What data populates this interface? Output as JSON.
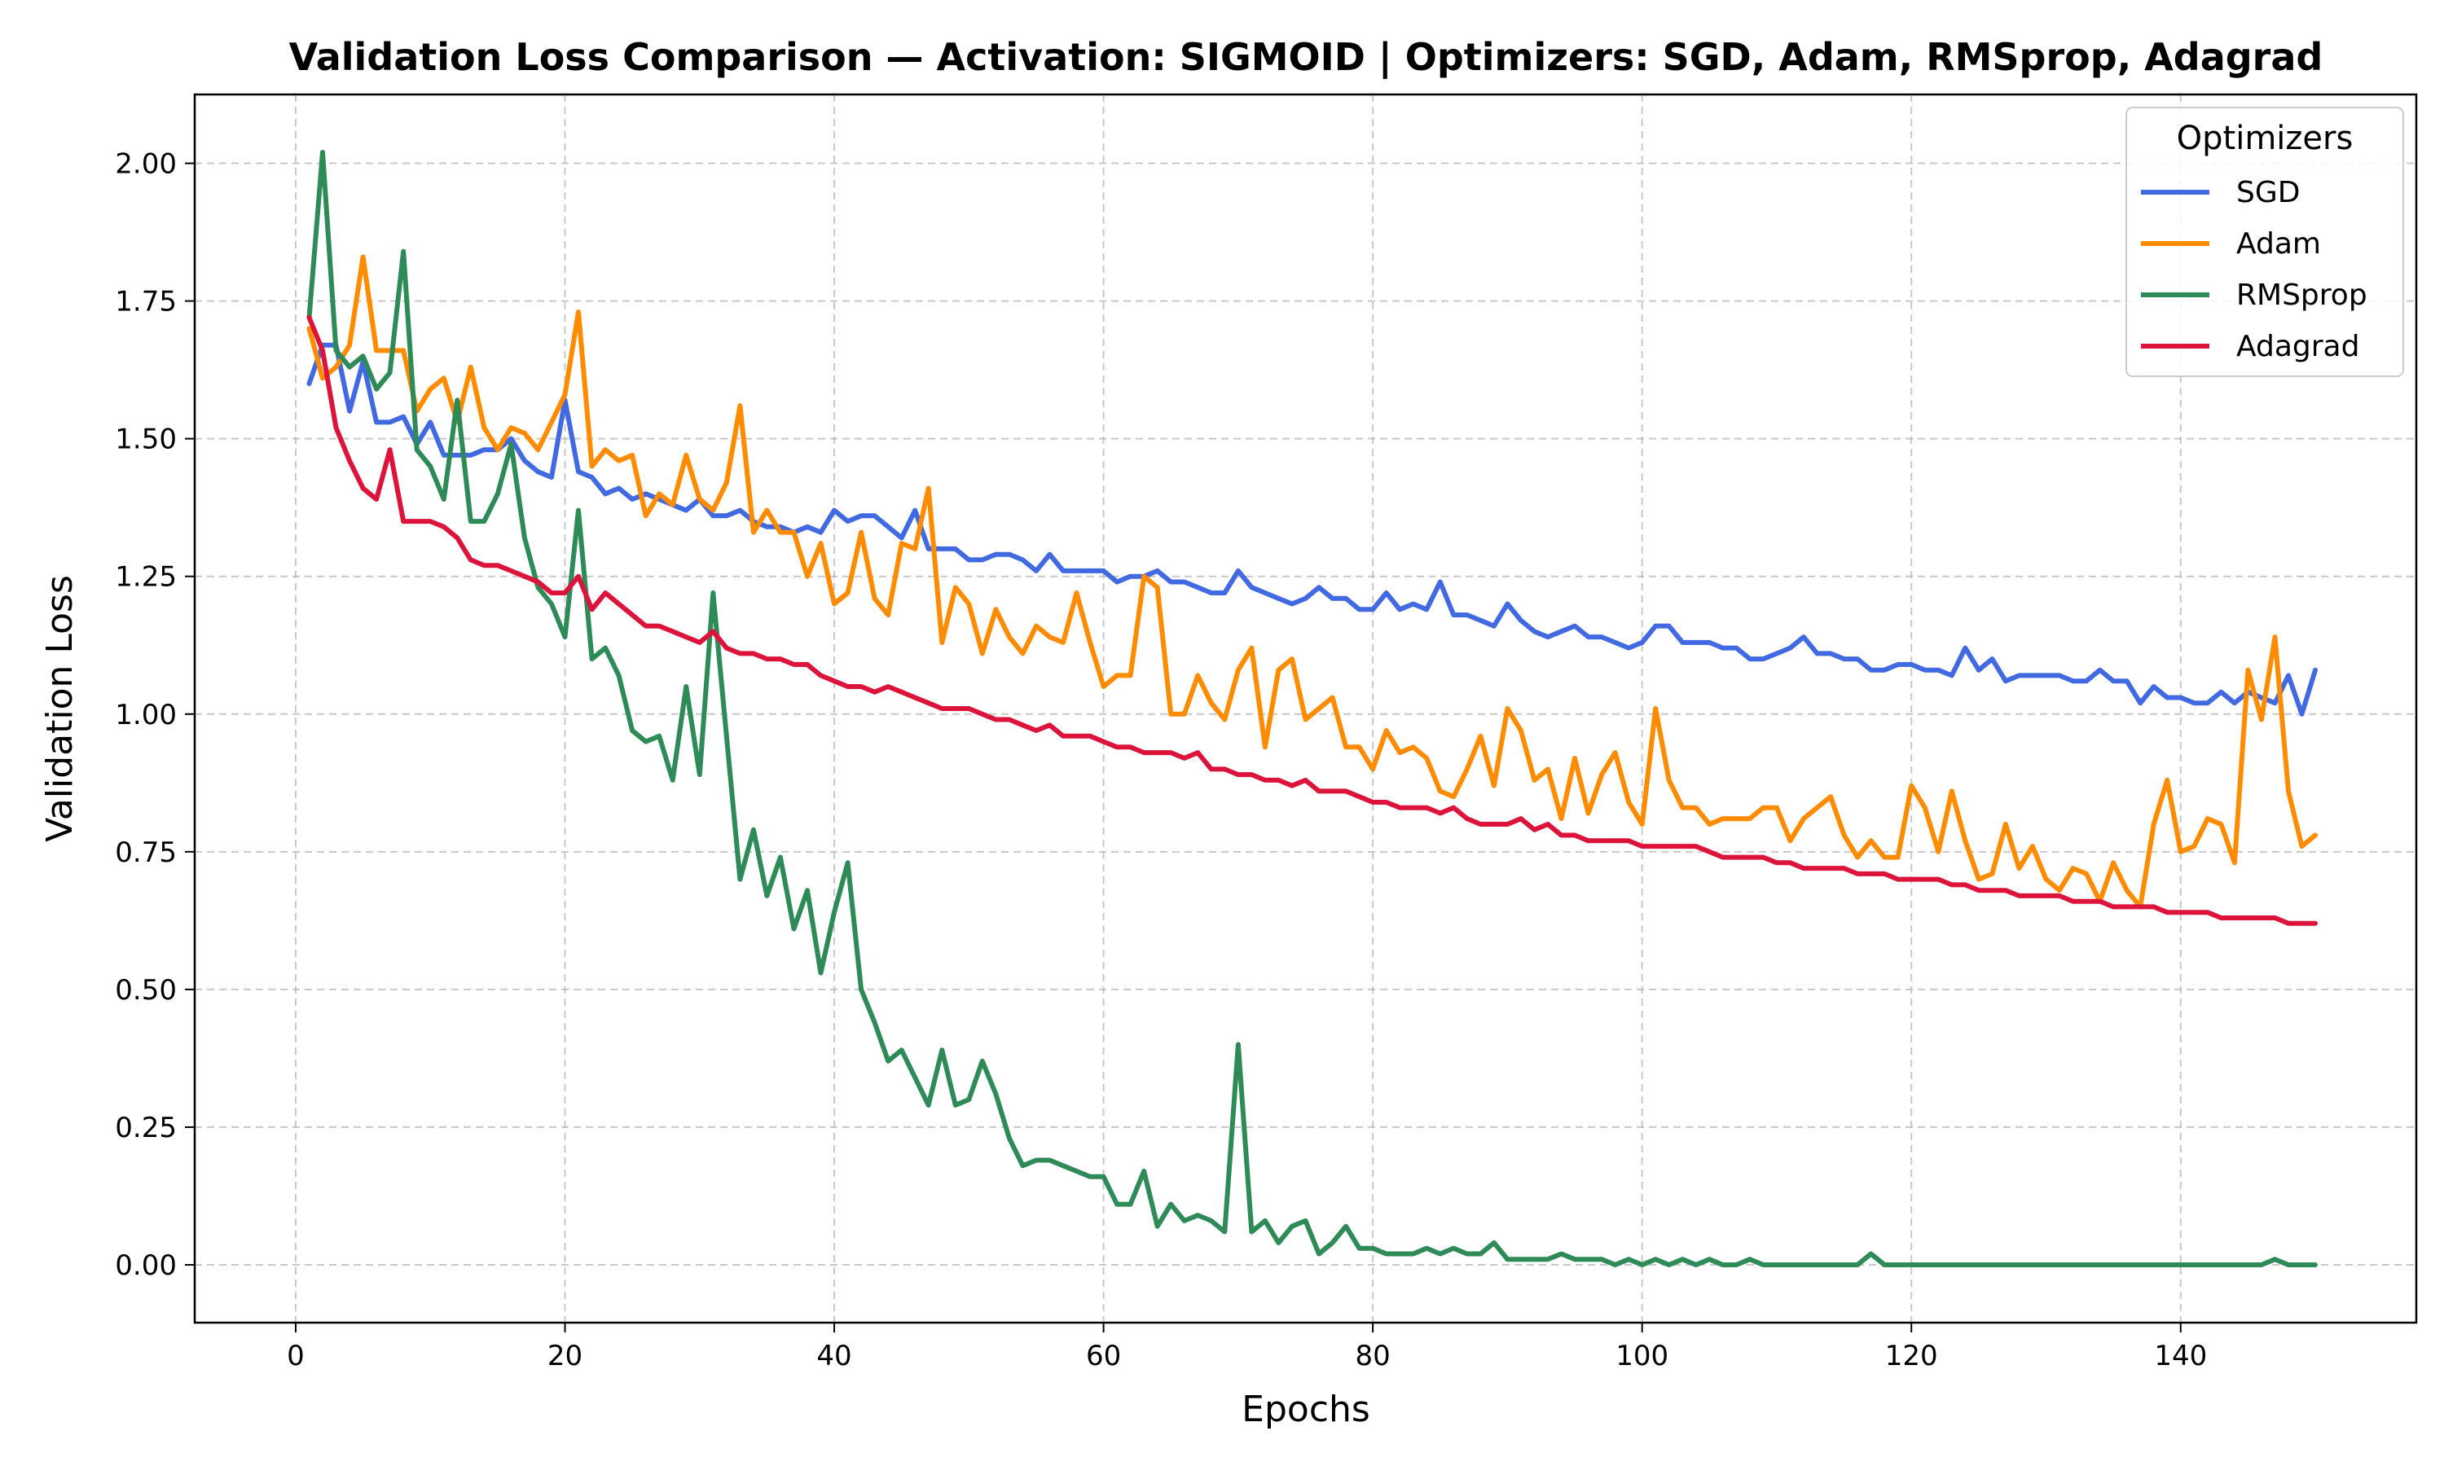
{
  "chart_data": {
    "type": "line",
    "title": "Validation Loss Comparison — Activation: SIGMOID | Optimizers: SGD, Adam, RMSprop, Adagrad",
    "xlabel": "Epochs",
    "ylabel": "Validation Loss",
    "xlim": [
      -7.5,
      157.5
    ],
    "ylim": [
      -0.105,
      2.125
    ],
    "xticks": [
      0,
      20,
      40,
      60,
      80,
      100,
      120,
      140
    ],
    "xtick_labels": [
      "0",
      "20",
      "40",
      "60",
      "80",
      "100",
      "120",
      "140"
    ],
    "yticks": [
      0.0,
      0.25,
      0.5,
      0.75,
      1.0,
      1.25,
      1.5,
      1.75,
      2.0
    ],
    "ytick_labels": [
      "0.00",
      "0.25",
      "0.50",
      "0.75",
      "1.00",
      "1.25",
      "1.50",
      "1.75",
      "2.00"
    ],
    "grid": true,
    "legend": {
      "title": "Optimizers",
      "position": "top-right"
    },
    "x_start": 1,
    "x_end": 150,
    "series": [
      {
        "name": "SGD",
        "color": "#4169e1",
        "values": [
          1.6,
          1.67,
          1.67,
          1.55,
          1.64,
          1.53,
          1.53,
          1.54,
          1.49,
          1.53,
          1.47,
          1.47,
          1.47,
          1.48,
          1.48,
          1.5,
          1.46,
          1.44,
          1.43,
          1.57,
          1.44,
          1.43,
          1.4,
          1.41,
          1.39,
          1.4,
          1.39,
          1.38,
          1.37,
          1.39,
          1.36,
          1.36,
          1.37,
          1.35,
          1.34,
          1.34,
          1.33,
          1.34,
          1.33,
          1.37,
          1.35,
          1.36,
          1.36,
          1.34,
          1.32,
          1.37,
          1.3,
          1.3,
          1.3,
          1.28,
          1.28,
          1.29,
          1.29,
          1.28,
          1.26,
          1.29,
          1.26,
          1.26,
          1.26,
          1.26,
          1.24,
          1.25,
          1.25,
          1.26,
          1.24,
          1.24,
          1.23,
          1.22,
          1.22,
          1.26,
          1.23,
          1.22,
          1.21,
          1.2,
          1.21,
          1.23,
          1.21,
          1.21,
          1.19,
          1.19,
          1.22,
          1.19,
          1.2,
          1.19,
          1.24,
          1.18,
          1.18,
          1.17,
          1.16,
          1.2,
          1.17,
          1.15,
          1.14,
          1.15,
          1.16,
          1.14,
          1.14,
          1.13,
          1.12,
          1.13,
          1.16,
          1.16,
          1.13,
          1.13,
          1.13,
          1.12,
          1.12,
          1.1,
          1.1,
          1.11,
          1.12,
          1.14,
          1.11,
          1.11,
          1.1,
          1.1,
          1.08,
          1.08,
          1.09,
          1.09,
          1.08,
          1.08,
          1.07,
          1.12,
          1.08,
          1.1,
          1.06,
          1.07,
          1.07,
          1.07,
          1.07,
          1.06,
          1.06,
          1.08,
          1.06,
          1.06,
          1.02,
          1.05,
          1.03,
          1.03,
          1.02,
          1.02,
          1.04,
          1.02,
          1.04,
          1.03,
          1.02,
          1.07,
          1.0,
          1.08
        ]
      },
      {
        "name": "Adam",
        "color": "#ff8c00",
        "values": [
          1.7,
          1.61,
          1.63,
          1.67,
          1.83,
          1.66,
          1.66,
          1.66,
          1.55,
          1.59,
          1.61,
          1.53,
          1.63,
          1.52,
          1.48,
          1.52,
          1.51,
          1.48,
          1.53,
          1.58,
          1.73,
          1.45,
          1.48,
          1.46,
          1.47,
          1.36,
          1.4,
          1.38,
          1.47,
          1.39,
          1.37,
          1.42,
          1.56,
          1.33,
          1.37,
          1.33,
          1.33,
          1.25,
          1.31,
          1.2,
          1.22,
          1.33,
          1.21,
          1.18,
          1.31,
          1.3,
          1.41,
          1.13,
          1.23,
          1.2,
          1.11,
          1.19,
          1.14,
          1.11,
          1.16,
          1.14,
          1.13,
          1.22,
          1.13,
          1.05,
          1.07,
          1.07,
          1.25,
          1.23,
          1.0,
          1.0,
          1.07,
          1.02,
          0.99,
          1.08,
          1.12,
          0.94,
          1.08,
          1.1,
          0.99,
          1.01,
          1.03,
          0.94,
          0.94,
          0.9,
          0.97,
          0.93,
          0.94,
          0.92,
          0.86,
          0.85,
          0.9,
          0.96,
          0.87,
          1.01,
          0.97,
          0.88,
          0.9,
          0.81,
          0.92,
          0.82,
          0.89,
          0.93,
          0.84,
          0.8,
          1.01,
          0.88,
          0.83,
          0.83,
          0.8,
          0.81,
          0.81,
          0.81,
          0.83,
          0.83,
          0.77,
          0.81,
          0.83,
          0.85,
          0.78,
          0.74,
          0.77,
          0.74,
          0.74,
          0.87,
          0.83,
          0.75,
          0.86,
          0.77,
          0.7,
          0.71,
          0.8,
          0.72,
          0.76,
          0.7,
          0.68,
          0.72,
          0.71,
          0.66,
          0.73,
          0.68,
          0.65,
          0.8,
          0.88,
          0.75,
          0.76,
          0.81,
          0.8,
          0.73,
          1.08,
          0.99,
          1.14,
          0.86,
          0.76,
          0.78
        ]
      },
      {
        "name": "RMSprop",
        "color": "#2e8b57",
        "values": [
          1.72,
          2.02,
          1.66,
          1.63,
          1.65,
          1.59,
          1.62,
          1.84,
          1.48,
          1.45,
          1.39,
          1.57,
          1.35,
          1.35,
          1.4,
          1.49,
          1.32,
          1.23,
          1.2,
          1.14,
          1.37,
          1.1,
          1.12,
          1.07,
          0.97,
          0.95,
          0.96,
          0.88,
          1.05,
          0.89,
          1.22,
          0.96,
          0.7,
          0.79,
          0.67,
          0.74,
          0.61,
          0.68,
          0.53,
          0.64,
          0.73,
          0.5,
          0.44,
          0.37,
          0.39,
          0.34,
          0.29,
          0.39,
          0.29,
          0.3,
          0.37,
          0.31,
          0.23,
          0.18,
          0.19,
          0.19,
          0.18,
          0.17,
          0.16,
          0.16,
          0.11,
          0.11,
          0.17,
          0.07,
          0.11,
          0.08,
          0.09,
          0.08,
          0.06,
          0.4,
          0.06,
          0.08,
          0.04,
          0.07,
          0.08,
          0.02,
          0.04,
          0.07,
          0.03,
          0.03,
          0.02,
          0.02,
          0.02,
          0.03,
          0.02,
          0.03,
          0.02,
          0.02,
          0.04,
          0.01,
          0.01,
          0.01,
          0.01,
          0.02,
          0.01,
          0.01,
          0.01,
          0.0,
          0.01,
          0.0,
          0.01,
          0.0,
          0.01,
          0.0,
          0.01,
          0.0,
          0.0,
          0.01,
          0.0,
          0.0,
          0.0,
          0.0,
          0.0,
          0.0,
          0.0,
          0.0,
          0.02,
          0.0,
          0.0,
          0.0,
          0.0,
          0.0,
          0.0,
          0.0,
          0.0,
          0.0,
          0.0,
          0.0,
          0.0,
          0.0,
          0.0,
          0.0,
          0.0,
          0.0,
          0.0,
          0.0,
          0.0,
          0.0,
          0.0,
          0.0,
          0.0,
          0.0,
          0.0,
          0.0,
          0.0,
          0.0,
          0.01,
          0.0,
          0.0,
          0.0
        ]
      },
      {
        "name": "Adagrad",
        "color": "#dc143c",
        "values": [
          1.72,
          1.66,
          1.52,
          1.46,
          1.41,
          1.39,
          1.48,
          1.35,
          1.35,
          1.35,
          1.34,
          1.32,
          1.28,
          1.27,
          1.27,
          1.26,
          1.25,
          1.24,
          1.22,
          1.22,
          1.25,
          1.19,
          1.22,
          1.2,
          1.18,
          1.16,
          1.16,
          1.15,
          1.14,
          1.13,
          1.15,
          1.12,
          1.11,
          1.11,
          1.1,
          1.1,
          1.09,
          1.09,
          1.07,
          1.06,
          1.05,
          1.05,
          1.04,
          1.05,
          1.04,
          1.03,
          1.02,
          1.01,
          1.01,
          1.01,
          1.0,
          0.99,
          0.99,
          0.98,
          0.97,
          0.98,
          0.96,
          0.96,
          0.96,
          0.95,
          0.94,
          0.94,
          0.93,
          0.93,
          0.93,
          0.92,
          0.93,
          0.9,
          0.9,
          0.89,
          0.89,
          0.88,
          0.88,
          0.87,
          0.88,
          0.86,
          0.86,
          0.86,
          0.85,
          0.84,
          0.84,
          0.83,
          0.83,
          0.83,
          0.82,
          0.83,
          0.81,
          0.8,
          0.8,
          0.8,
          0.81,
          0.79,
          0.8,
          0.78,
          0.78,
          0.77,
          0.77,
          0.77,
          0.77,
          0.76,
          0.76,
          0.76,
          0.76,
          0.76,
          0.75,
          0.74,
          0.74,
          0.74,
          0.74,
          0.73,
          0.73,
          0.72,
          0.72,
          0.72,
          0.72,
          0.71,
          0.71,
          0.71,
          0.7,
          0.7,
          0.7,
          0.7,
          0.69,
          0.69,
          0.68,
          0.68,
          0.68,
          0.67,
          0.67,
          0.67,
          0.67,
          0.66,
          0.66,
          0.66,
          0.65,
          0.65,
          0.65,
          0.65,
          0.64,
          0.64,
          0.64,
          0.64,
          0.63,
          0.63,
          0.63,
          0.63,
          0.63,
          0.62,
          0.62,
          0.62
        ]
      }
    ]
  }
}
